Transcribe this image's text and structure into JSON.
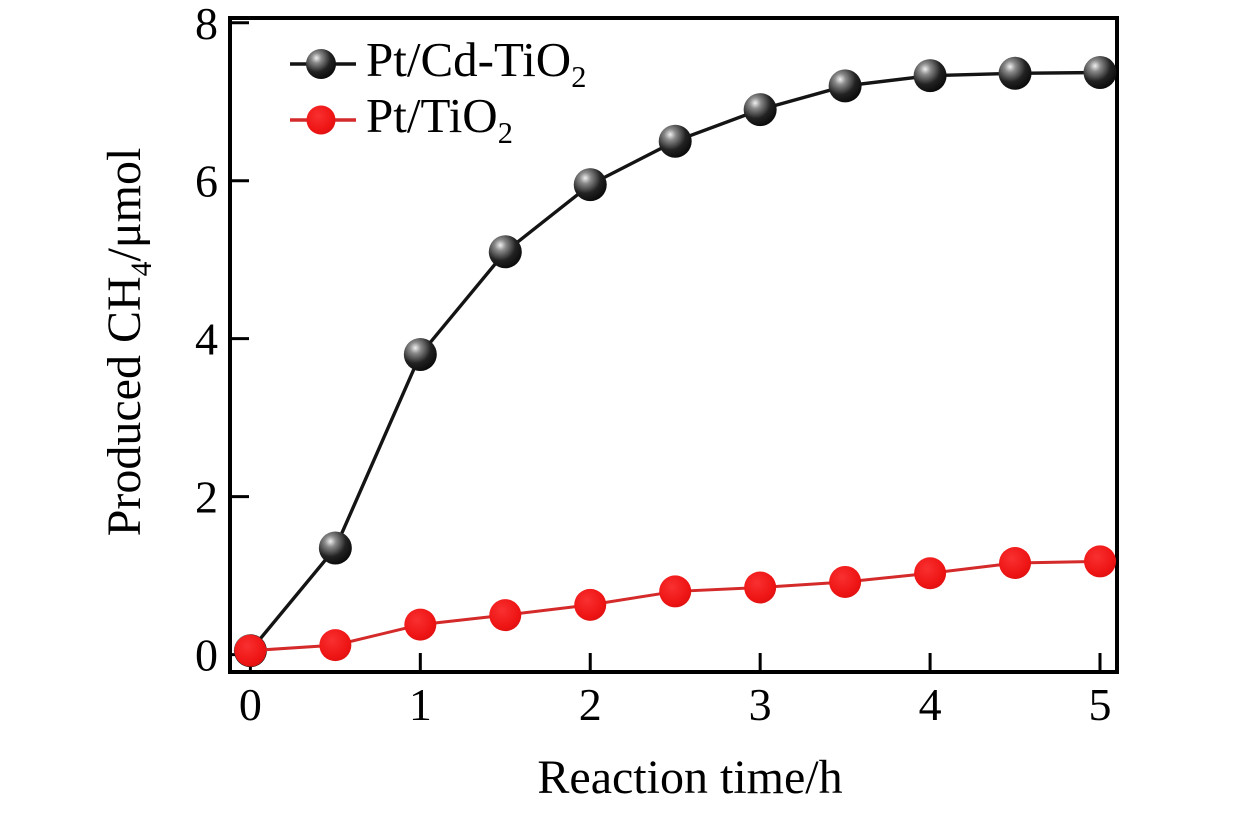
{
  "figure": {
    "background_color": "#ffffff",
    "axis_color": "#000000",
    "text_color": "#000000"
  },
  "chart_data": {
    "type": "line",
    "title": "",
    "xlabel": "Reaction time/h",
    "ylabel": "Produced CH4/μmol",
    "ylabel_parts": {
      "pre": "Produced CH",
      "sub": "4",
      "post": "/μmol"
    },
    "x": [
      0,
      0.5,
      1,
      1.5,
      2,
      2.5,
      3,
      3.5,
      4,
      4.5,
      5
    ],
    "series": [
      {
        "name": "Pt/Cd-TiO2",
        "label_pre": "Pt/Cd-TiO",
        "label_sub": "2",
        "line_color": "#141414",
        "marker": "sphere",
        "marker_color": "#0a0a0a",
        "values": [
          0.05,
          1.35,
          3.8,
          5.1,
          5.95,
          6.5,
          6.9,
          7.2,
          7.33,
          7.36,
          7.37
        ]
      },
      {
        "name": "Pt/TiO2",
        "label_pre": "Pt/TiO",
        "label_sub": "2",
        "line_color": "#d42a2a",
        "marker": "circle",
        "marker_color": "#ee1414",
        "values": [
          0.05,
          0.12,
          0.38,
          0.5,
          0.63,
          0.8,
          0.85,
          0.92,
          1.03,
          1.16,
          1.18
        ]
      }
    ],
    "xlim": [
      -0.12,
      5.1
    ],
    "ylim": [
      -0.22,
      8.06
    ],
    "xticks": [
      0,
      1,
      2,
      3,
      4,
      5
    ],
    "yticks": [
      0,
      2,
      4,
      6,
      8
    ],
    "grid": false,
    "legend_position": "top-left-inside"
  }
}
